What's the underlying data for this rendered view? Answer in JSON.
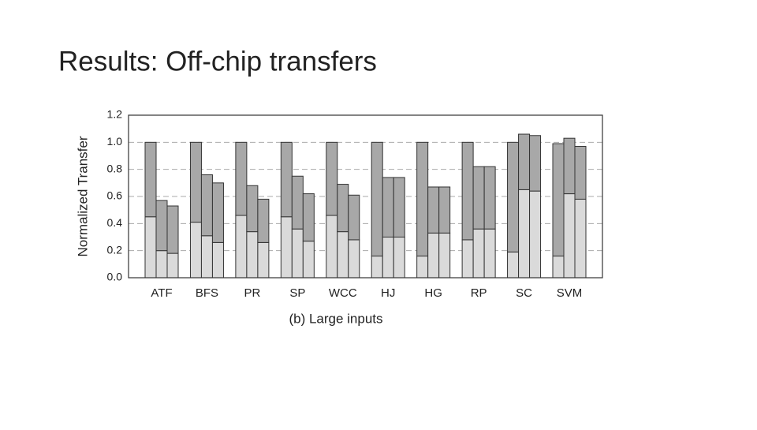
{
  "slide_title": "Results: Off-chip transfers",
  "chart_data": {
    "type": "grouped-stacked-bar",
    "y_label": "Normalized Transfer",
    "x_label": "(b) Large inputs",
    "categories": [
      "ATF",
      "BFS",
      "PR",
      "SP",
      "WCC",
      "HJ",
      "HG",
      "RP",
      "SC",
      "SVM"
    ],
    "ylim": [
      0,
      1.2
    ],
    "yticks": [
      {
        "value": 0,
        "label": "0.0"
      },
      0.2,
      0.4,
      0.6,
      0.8,
      {
        "value": 1,
        "label": "1.0"
      },
      1.2
    ],
    "grid": true,
    "bars": [
      {
        "segments": [
          {
            "color": "#dadada",
            "values": [
              0.45,
              0.41,
              0.46,
              0.45,
              0.46,
              0.16,
              0.16,
              0.28,
              0.19,
              0.16
            ]
          },
          {
            "color": "#a8a8a8",
            "values": [
              0.55,
              0.59,
              0.54,
              0.55,
              0.54,
              0.84,
              0.84,
              0.72,
              0.81,
              0.83
            ]
          }
        ]
      },
      {
        "segments": [
          {
            "color": "#dadada",
            "values": [
              0.2,
              0.31,
              0.34,
              0.36,
              0.34,
              0.3,
              0.33,
              0.36,
              0.65,
              0.62
            ]
          },
          {
            "color": "#a8a8a8",
            "values": [
              0.37,
              0.45,
              0.34,
              0.39,
              0.35,
              0.44,
              0.34,
              0.46,
              0.41,
              0.41
            ]
          }
        ]
      },
      {
        "segments": [
          {
            "color": "#dadada",
            "values": [
              0.18,
              0.26,
              0.26,
              0.27,
              0.28,
              0.3,
              0.33,
              0.36,
              0.64,
              0.58
            ]
          },
          {
            "color": "#a8a8a8",
            "values": [
              0.35,
              0.44,
              0.32,
              0.35,
              0.33,
              0.44,
              0.34,
              0.46,
              0.41,
              0.39
            ]
          }
        ]
      }
    ]
  }
}
